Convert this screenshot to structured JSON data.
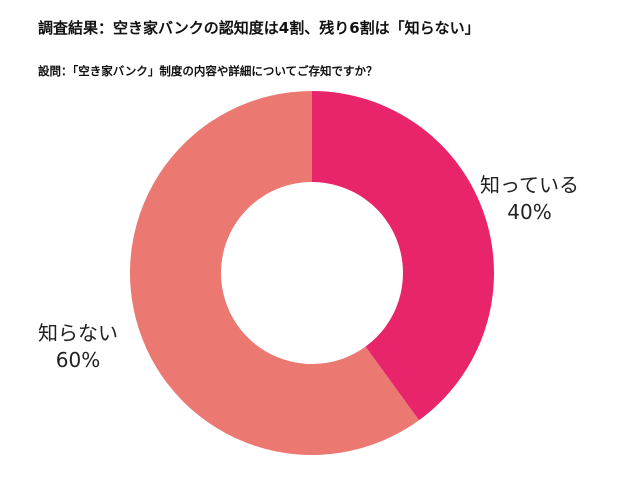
{
  "chart_data": {
    "type": "pie",
    "title": "調査結果：空き家バンクの認知度は4割、残り6割は「知らない」",
    "subtitle": "設問：「空き家バンク」制度の内容や詳細についてご存知ですか？",
    "categories": [
      "知っている",
      "知らない"
    ],
    "values": [
      40,
      60
    ],
    "labels": [
      "40%",
      "60%"
    ],
    "colors": [
      "#e8246b",
      "#ec7872"
    ],
    "donut": true
  }
}
